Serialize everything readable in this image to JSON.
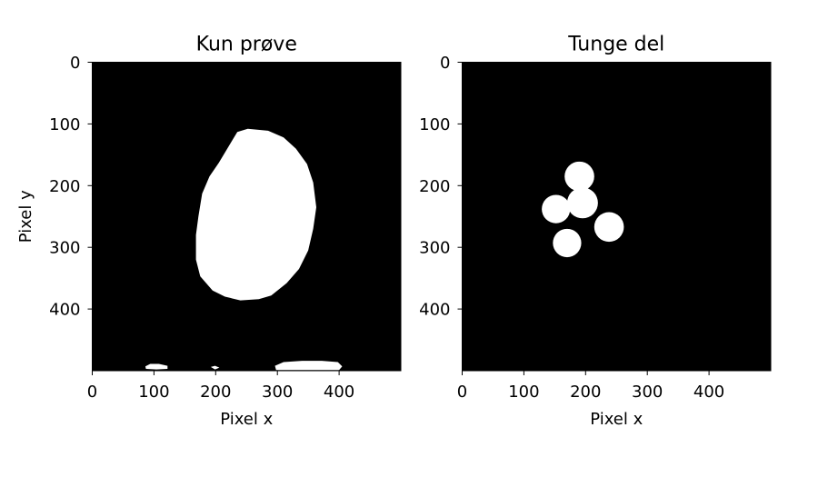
{
  "figure": {
    "colors": {
      "background": "#ffffff",
      "mask_off": "#000000",
      "mask_on": "#ffffff",
      "axis": "#000000"
    }
  },
  "chart_data": [
    {
      "type": "heatmap",
      "title": "Kun prøve",
      "xlabel": "Pixel x",
      "ylabel": "Pixel y",
      "xlim": [
        0,
        500
      ],
      "ylim": [
        500,
        0
      ],
      "x_ticks": [
        0,
        100,
        200,
        300,
        400
      ],
      "y_ticks": [
        0,
        100,
        200,
        300,
        400
      ],
      "grid": false,
      "colormap": "binary mask (0 = black, 1 = white)",
      "regions": [
        {
          "name": "sample-disc",
          "polygon": [
            [
              252,
              108
            ],
            [
              285,
              111
            ],
            [
              310,
              122
            ],
            [
              330,
              140
            ],
            [
              348,
              165
            ],
            [
              358,
              195
            ],
            [
              363,
              235
            ],
            [
              358,
              270
            ],
            [
              350,
              305
            ],
            [
              335,
              335
            ],
            [
              315,
              358
            ],
            [
              290,
              378
            ],
            [
              270,
              384
            ],
            [
              240,
              386
            ],
            [
              215,
              380
            ],
            [
              195,
              370
            ],
            [
              175,
              347
            ],
            [
              168,
              320
            ],
            [
              168,
              280
            ],
            [
              172,
              250
            ],
            [
              178,
              213
            ],
            [
              190,
              185
            ],
            [
              205,
              163
            ],
            [
              235,
              113
            ]
          ]
        },
        {
          "name": "bottom-blob-left",
          "polygon": [
            [
              86,
              493
            ],
            [
              94,
              489
            ],
            [
              108,
              489
            ],
            [
              122,
              492
            ],
            [
              122,
              497
            ],
            [
              104,
              498
            ],
            [
              87,
              497
            ]
          ]
        },
        {
          "name": "bottom-blob-small",
          "polygon": [
            [
              192,
              494
            ],
            [
              199,
              492
            ],
            [
              206,
              495
            ],
            [
              199,
              498
            ]
          ]
        },
        {
          "name": "bottom-blob-right",
          "polygon": [
            [
              296,
              492
            ],
            [
              310,
              486
            ],
            [
              340,
              484
            ],
            [
              372,
              484
            ],
            [
              398,
              486
            ],
            [
              405,
              493
            ],
            [
              400,
              499
            ],
            [
              298,
              499
            ]
          ]
        }
      ]
    },
    {
      "type": "heatmap",
      "title": "Tunge del",
      "xlabel": "Pixel x",
      "ylabel": "",
      "xlim": [
        0,
        500
      ],
      "ylim": [
        500,
        0
      ],
      "x_ticks": [
        0,
        100,
        200,
        300,
        400
      ],
      "y_ticks": [
        0,
        100,
        200,
        300,
        400
      ],
      "grid": false,
      "colormap": "binary mask (0 = black, 1 = white)",
      "circles": [
        {
          "cx": 190,
          "cy": 185,
          "r": 24
        },
        {
          "cx": 195,
          "cy": 228,
          "r": 25
        },
        {
          "cx": 152,
          "cy": 238,
          "r": 23
        },
        {
          "cx": 238,
          "cy": 267,
          "r": 24
        },
        {
          "cx": 170,
          "cy": 293,
          "r": 23
        }
      ]
    }
  ]
}
